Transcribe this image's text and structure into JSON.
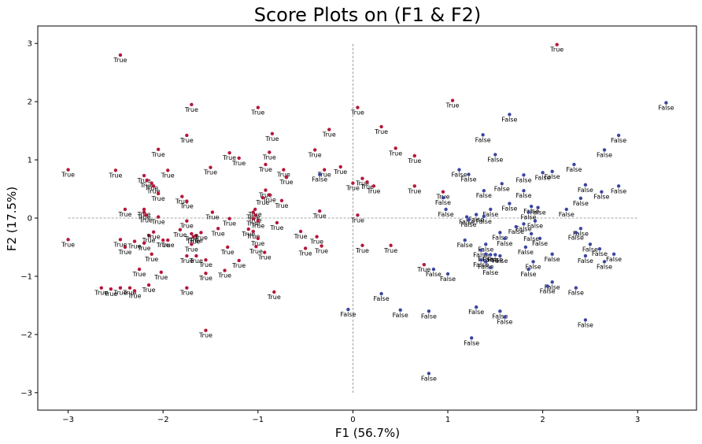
{
  "chart_data": {
    "type": "scatter",
    "title": "Score Plots on (F1 & F2)",
    "xlabel": "F1 (56.7%)",
    "ylabel": "F2 (17.5%)",
    "xlim": [
      -3.32,
      3.62
    ],
    "ylim": [
      -3.3,
      3.3
    ],
    "xticks": [
      -3,
      -2,
      -1,
      0,
      1,
      2,
      3
    ],
    "yticks": [
      -3,
      -2,
      -1,
      0,
      1,
      2,
      3
    ],
    "tick_labels_x": [
      "−3",
      "−2",
      "−1",
      "0",
      "1",
      "2",
      "3"
    ],
    "tick_labels_y": [
      "−3",
      "−2",
      "−1",
      "0",
      "1",
      "2",
      "3"
    ],
    "reference_lines": {
      "h_x": [
        -3,
        3
      ],
      "v_y": [
        -3,
        3
      ]
    },
    "grid": false,
    "legend": "none",
    "colors": {
      "true": "#b5173a",
      "false": "#3a46a0"
    },
    "series": [
      {
        "label": "True",
        "color": "#b5173a",
        "points": [
          [
            -2.45,
            2.8
          ],
          [
            -1.7,
            1.95
          ],
          [
            -1.0,
            1.9
          ],
          [
            0.05,
            1.9
          ],
          [
            1.05,
            2.02
          ],
          [
            -0.85,
            1.45
          ],
          [
            -0.25,
            1.52
          ],
          [
            0.3,
            1.57
          ],
          [
            -1.75,
            1.42
          ],
          [
            -2.05,
            1.18
          ],
          [
            -1.3,
            1.12
          ],
          [
            -0.88,
            1.13
          ],
          [
            -0.4,
            1.17
          ],
          [
            0.45,
            1.2
          ],
          [
            -1.2,
            1.03
          ],
          [
            0.65,
            1.07
          ],
          [
            -3.0,
            0.83
          ],
          [
            -2.5,
            0.82
          ],
          [
            -1.95,
            0.82
          ],
          [
            -1.5,
            0.87
          ],
          [
            -0.92,
            0.92
          ],
          [
            -0.73,
            0.83
          ],
          [
            -0.3,
            0.83
          ],
          [
            -0.13,
            0.88
          ],
          [
            -2.2,
            0.73
          ],
          [
            -2.17,
            0.65
          ],
          [
            -2.12,
            0.6
          ],
          [
            -2.1,
            0.55
          ],
          [
            -0.7,
            0.7
          ],
          [
            0.1,
            0.68
          ],
          [
            0.15,
            0.62
          ],
          [
            0.0,
            0.6
          ],
          [
            0.22,
            0.55
          ],
          [
            0.65,
            0.55
          ],
          [
            -2.05,
            0.42
          ],
          [
            -1.8,
            0.37
          ],
          [
            -0.92,
            0.48
          ],
          [
            -0.88,
            0.4
          ],
          [
            -0.75,
            0.3
          ],
          [
            -0.95,
            0.35
          ],
          [
            0.95,
            0.45
          ],
          [
            -1.75,
            0.29
          ],
          [
            -2.4,
            0.15
          ],
          [
            -2.2,
            0.15
          ],
          [
            -2.2,
            0.1
          ],
          [
            -2.18,
            0.05
          ],
          [
            -2.05,
            0.02
          ],
          [
            -1.48,
            0.1
          ],
          [
            -1.03,
            0.15
          ],
          [
            -1.05,
            0.1
          ],
          [
            -1.03,
            0.05
          ],
          [
            -0.35,
            0.12
          ],
          [
            0.05,
            0.05
          ],
          [
            -1.75,
            -0.05
          ],
          [
            -1.3,
            -0.01
          ],
          [
            -1.05,
            -0.01
          ],
          [
            -1.0,
            -0.05
          ],
          [
            -0.8,
            -0.08
          ],
          [
            -3.0,
            -0.37
          ],
          [
            -2.45,
            -0.37
          ],
          [
            -2.3,
            -0.4
          ],
          [
            -2.15,
            -0.3
          ],
          [
            -2.1,
            -0.24
          ],
          [
            -1.82,
            -0.2
          ],
          [
            -1.7,
            -0.27
          ],
          [
            -1.68,
            -0.32
          ],
          [
            -1.65,
            -0.3
          ],
          [
            -1.6,
            -0.25
          ],
          [
            -1.42,
            -0.18
          ],
          [
            -1.1,
            -0.19
          ],
          [
            -1.05,
            -0.23
          ],
          [
            -1.0,
            -0.35
          ],
          [
            -0.55,
            -0.23
          ],
          [
            -0.38,
            -0.32
          ],
          [
            -2.0,
            -0.38
          ],
          [
            -1.95,
            -0.38
          ],
          [
            -2.4,
            -0.5
          ],
          [
            -2.2,
            -0.43
          ],
          [
            -1.7,
            -0.45
          ],
          [
            -1.32,
            -0.5
          ],
          [
            -1.02,
            -0.49
          ],
          [
            -0.93,
            -0.59
          ],
          [
            -0.5,
            -0.52
          ],
          [
            -0.33,
            -0.48
          ],
          [
            0.1,
            -0.47
          ],
          [
            0.4,
            -0.47
          ],
          [
            -2.12,
            -0.62
          ],
          [
            -1.75,
            -0.65
          ],
          [
            -1.65,
            -0.65
          ],
          [
            -1.55,
            -0.72
          ],
          [
            -1.2,
            -0.73
          ],
          [
            -2.25,
            -0.88
          ],
          [
            -2.02,
            -0.93
          ],
          [
            -1.55,
            -0.95
          ],
          [
            -1.35,
            -0.9
          ],
          [
            -2.65,
            -1.2
          ],
          [
            -2.55,
            -1.22
          ],
          [
            -2.45,
            -1.2
          ],
          [
            -2.35,
            -1.2
          ],
          [
            -2.3,
            -1.25
          ],
          [
            -2.15,
            -1.15
          ],
          [
            -1.75,
            -1.2
          ],
          [
            -0.83,
            -1.27
          ],
          [
            -1.55,
            -1.93
          ],
          [
            0.75,
            -0.8
          ],
          [
            2.15,
            2.98
          ]
        ]
      },
      {
        "label": "False",
        "color": "#3a46a0",
        "points": [
          [
            3.3,
            1.98
          ],
          [
            1.65,
            1.78
          ],
          [
            1.37,
            1.43
          ],
          [
            2.8,
            1.42
          ],
          [
            2.65,
            1.17
          ],
          [
            1.5,
            1.09
          ],
          [
            2.33,
            0.92
          ],
          [
            1.12,
            0.83
          ],
          [
            1.22,
            0.75
          ],
          [
            1.8,
            0.74
          ],
          [
            2.0,
            0.78
          ],
          [
            2.1,
            0.8
          ],
          [
            -0.35,
            0.75
          ],
          [
            0.95,
            0.35
          ],
          [
            2.45,
            0.57
          ],
          [
            2.8,
            0.55
          ],
          [
            1.57,
            0.59
          ],
          [
            1.38,
            0.47
          ],
          [
            1.8,
            0.47
          ],
          [
            2.62,
            0.45
          ],
          [
            2.4,
            0.34
          ],
          [
            1.65,
            0.25
          ],
          [
            1.88,
            0.2
          ],
          [
            1.95,
            0.18
          ],
          [
            1.85,
            0.1
          ],
          [
            2.25,
            0.15
          ],
          [
            1.45,
            0.15
          ],
          [
            0.98,
            0.15
          ],
          [
            1.3,
            0.06
          ],
          [
            1.38,
            0.03
          ],
          [
            1.2,
            0.02
          ],
          [
            1.22,
            -0.03
          ],
          [
            1.92,
            -0.05
          ],
          [
            1.8,
            -0.1
          ],
          [
            1.72,
            -0.15
          ],
          [
            2.4,
            -0.18
          ],
          [
            2.35,
            -0.25
          ],
          [
            1.55,
            -0.25
          ],
          [
            1.88,
            -0.27
          ],
          [
            1.97,
            -0.35
          ],
          [
            1.18,
            -0.38
          ],
          [
            1.6,
            -0.35
          ],
          [
            1.4,
            -0.45
          ],
          [
            2.5,
            -0.45
          ],
          [
            1.82,
            -0.5
          ],
          [
            2.6,
            -0.53
          ],
          [
            1.35,
            -0.55
          ],
          [
            1.4,
            -0.62
          ],
          [
            1.45,
            -0.63
          ],
          [
            1.5,
            -0.63
          ],
          [
            1.55,
            -0.65
          ],
          [
            2.1,
            -0.62
          ],
          [
            2.45,
            -0.65
          ],
          [
            2.75,
            -0.62
          ],
          [
            2.65,
            -0.75
          ],
          [
            1.35,
            -0.72
          ],
          [
            1.4,
            -0.75
          ],
          [
            1.9,
            -0.75
          ],
          [
            1.45,
            -0.85
          ],
          [
            1.85,
            -0.88
          ],
          [
            0.85,
            -0.88
          ],
          [
            1.0,
            -0.96
          ],
          [
            2.1,
            -1.1
          ],
          [
            2.05,
            -1.17
          ],
          [
            2.35,
            -1.2
          ],
          [
            2.45,
            -1.75
          ],
          [
            1.3,
            -1.53
          ],
          [
            1.55,
            -1.6
          ],
          [
            1.6,
            -1.7
          ],
          [
            -0.05,
            -1.57
          ],
          [
            0.5,
            -1.58
          ],
          [
            0.8,
            -1.6
          ],
          [
            1.25,
            -2.06
          ],
          [
            0.8,
            -2.67
          ],
          [
            0.3,
            -1.3
          ]
        ]
      }
    ]
  }
}
